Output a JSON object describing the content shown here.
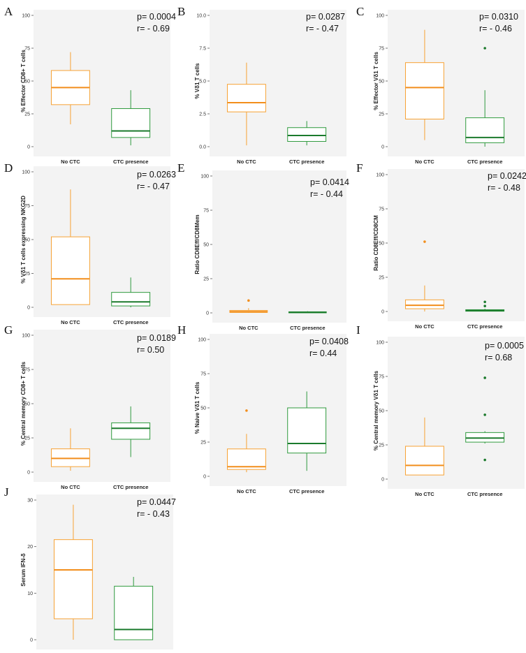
{
  "colors": {
    "group1": "#f7a234",
    "group1_median": "#f28e1c",
    "group2": "#2f9a3e",
    "group2_median": "#1b7a2c",
    "panel_bg": "#f3f3f3"
  },
  "chart_data": [
    {
      "panel": "A",
      "type": "box",
      "ylabel": "% Effector CD8+ T cells",
      "ylim": [
        0,
        100
      ],
      "ticks": [
        0,
        25,
        50,
        75,
        100
      ],
      "tick_labels": [
        "0",
        "25",
        "50",
        "75",
        "100"
      ],
      "categories": [
        "No CTC",
        "CTC presence"
      ],
      "p_label": "p= 0.0004",
      "r_label": "r= - 0.69",
      "boxes": [
        {
          "whisker_low": 17,
          "q1": 32,
          "median": 45,
          "q3": 58,
          "whisker_high": 72,
          "outliers": []
        },
        {
          "whisker_low": 1,
          "q1": 7,
          "median": 12,
          "q3": 29,
          "whisker_high": 43,
          "outliers": []
        }
      ]
    },
    {
      "panel": "B",
      "type": "box",
      "ylabel": "% Vδ1 T cells",
      "ylim": [
        0,
        10
      ],
      "ticks": [
        0,
        2.5,
        5,
        7.5,
        10
      ],
      "tick_labels": [
        "0.0",
        "2.5",
        "5.0",
        "7.5",
        "10.0"
      ],
      "categories": [
        "No CTC",
        "CTC presence"
      ],
      "p_label": "p= 0.0287",
      "r_label": "r= - 0.47",
      "boxes": [
        {
          "whisker_low": 0.1,
          "q1": 2.65,
          "median": 3.35,
          "q3": 4.75,
          "whisker_high": 6.4,
          "outliers": []
        },
        {
          "whisker_low": 0.1,
          "q1": 0.4,
          "median": 0.85,
          "q3": 1.45,
          "whisker_high": 1.95,
          "outliers": []
        }
      ]
    },
    {
      "panel": "C",
      "type": "box",
      "ylabel": "% Effector Vδ1 T cells",
      "ylim": [
        0,
        100
      ],
      "ticks": [
        0,
        25,
        50,
        75,
        100
      ],
      "tick_labels": [
        "0",
        "25",
        "50",
        "75",
        "100"
      ],
      "categories": [
        "No CTC",
        "CTC presence"
      ],
      "p_label": "p= 0.0310",
      "r_label": "r= - 0.46",
      "boxes": [
        {
          "whisker_low": 5,
          "q1": 21,
          "median": 45,
          "q3": 64,
          "whisker_high": 89,
          "outliers": []
        },
        {
          "whisker_low": 0,
          "q1": 3,
          "median": 7,
          "q3": 22,
          "whisker_high": 43,
          "outliers": [
            75
          ]
        }
      ]
    },
    {
      "panel": "D",
      "type": "box",
      "ylabel": "% Vδ1 T cells expressing NKG2D",
      "ylim": [
        0,
        100
      ],
      "ticks": [
        0,
        25,
        50,
        75,
        100
      ],
      "tick_labels": [
        "0",
        "25",
        "50",
        "75",
        "100"
      ],
      "categories": [
        "No CTC",
        "CTC presence"
      ],
      "p_label": "p= 0.0263",
      "r_label": "r= - 0.47",
      "boxes": [
        {
          "whisker_low": 2,
          "q1": 2,
          "median": 21,
          "q3": 52,
          "whisker_high": 87,
          "outliers": []
        },
        {
          "whisker_low": 0,
          "q1": 1,
          "median": 4,
          "q3": 11,
          "whisker_high": 22,
          "outliers": []
        }
      ]
    },
    {
      "panel": "E",
      "type": "box",
      "ylabel": "Ratio CD8Eff/CD8Mem",
      "ylim": [
        0,
        100
      ],
      "ticks": [
        0,
        25,
        50,
        75,
        100
      ],
      "tick_labels": [
        "0",
        "25",
        "50",
        "75",
        "100"
      ],
      "categories": [
        "No CTC",
        "CTC presence"
      ],
      "p_label": "p= 0.0414",
      "r_label": "r= - 0.44",
      "boxes": [
        {
          "whisker_low": 0,
          "q1": 0.3,
          "median": 0.9,
          "q3": 1.8,
          "whisker_high": 3.5,
          "outliers": [
            9
          ]
        },
        {
          "whisker_low": 0,
          "q1": 0.1,
          "median": 0.4,
          "q3": 0.8,
          "whisker_high": 1.2,
          "outliers": []
        }
      ]
    },
    {
      "panel": "F",
      "type": "box",
      "ylabel": "Ratio CD8Eff/CD8CM",
      "ylim": [
        0,
        100
      ],
      "ticks": [
        0,
        25,
        50,
        75,
        100
      ],
      "tick_labels": [
        "0",
        "25",
        "50",
        "75",
        "100"
      ],
      "categories": [
        "No CTC",
        "CTC presence"
      ],
      "p_label": "p= 0.0242",
      "r_label": "r= - 0.48",
      "boxes": [
        {
          "whisker_low": 0,
          "q1": 2,
          "median": 4.5,
          "q3": 8.5,
          "whisker_high": 19,
          "outliers": [
            51
          ]
        },
        {
          "whisker_low": 0,
          "q1": 0.2,
          "median": 0.7,
          "q3": 1.3,
          "whisker_high": 2,
          "outliers": [
            4,
            7
          ]
        }
      ]
    },
    {
      "panel": "G",
      "type": "box",
      "ylabel": "% Central memory CD8+ T cells",
      "ylim": [
        0,
        100
      ],
      "ticks": [
        0,
        25,
        50,
        75,
        100
      ],
      "tick_labels": [
        "0",
        "25",
        "50",
        "75",
        "100"
      ],
      "categories": [
        "No CTC",
        "CTC presence"
      ],
      "p_label": "p= 0.0189",
      "r_label": "r= 0.50",
      "boxes": [
        {
          "whisker_low": 1,
          "q1": 4,
          "median": 10,
          "q3": 17,
          "whisker_high": 32,
          "outliers": []
        },
        {
          "whisker_low": 11,
          "q1": 24,
          "median": 32,
          "q3": 36,
          "whisker_high": 48,
          "outliers": []
        }
      ]
    },
    {
      "panel": "H",
      "type": "box",
      "ylabel": "% Naive Vδ1 T cells",
      "ylim": [
        0,
        100
      ],
      "ticks": [
        0,
        25,
        50,
        75,
        100
      ],
      "tick_labels": [
        "0",
        "25",
        "50",
        "75",
        "100"
      ],
      "categories": [
        "No CTC",
        "CTC presence"
      ],
      "p_label": "p= 0.0408",
      "r_label": "r= 0.44",
      "boxes": [
        {
          "whisker_low": 3,
          "q1": 5,
          "median": 7,
          "q3": 20,
          "whisker_high": 31,
          "outliers": [
            48
          ]
        },
        {
          "whisker_low": 4,
          "q1": 17,
          "median": 24,
          "q3": 50,
          "whisker_high": 62,
          "outliers": []
        }
      ]
    },
    {
      "panel": "I",
      "type": "box",
      "ylabel": "% Central memory Vδ1 T cells",
      "ylim": [
        0,
        100
      ],
      "ticks": [
        0,
        25,
        50,
        75,
        100
      ],
      "tick_labels": [
        "0",
        "25",
        "50",
        "75",
        "100"
      ],
      "categories": [
        "No CTC",
        "CTC presence"
      ],
      "p_label": "p= 0.0005",
      "r_label": "r= 0.68",
      "boxes": [
        {
          "whisker_low": 3,
          "q1": 3,
          "median": 10,
          "q3": 24,
          "whisker_high": 45,
          "outliers": []
        },
        {
          "whisker_low": 26,
          "q1": 27,
          "median": 30,
          "q3": 34,
          "whisker_high": 35,
          "outliers": [
            74,
            47,
            14
          ]
        }
      ]
    },
    {
      "panel": "J",
      "type": "box",
      "ylabel": "Serum IFN-δ",
      "ylim": [
        0,
        30
      ],
      "ticks": [
        0,
        10,
        20,
        30
      ],
      "tick_labels": [
        "0",
        "10",
        "20",
        "30"
      ],
      "categories": [
        "No CTC",
        "CTC presence"
      ],
      "p_label": "p= 0.0447",
      "r_label": "r= - 0.43",
      "boxes": [
        {
          "whisker_low": 0,
          "q1": 4.5,
          "median": 15,
          "q3": 21.5,
          "whisker_high": 29,
          "outliers": []
        },
        {
          "whisker_low": 0,
          "q1": 0,
          "median": 2.2,
          "q3": 11.5,
          "whisker_high": 13.5,
          "outliers": []
        }
      ]
    }
  ]
}
